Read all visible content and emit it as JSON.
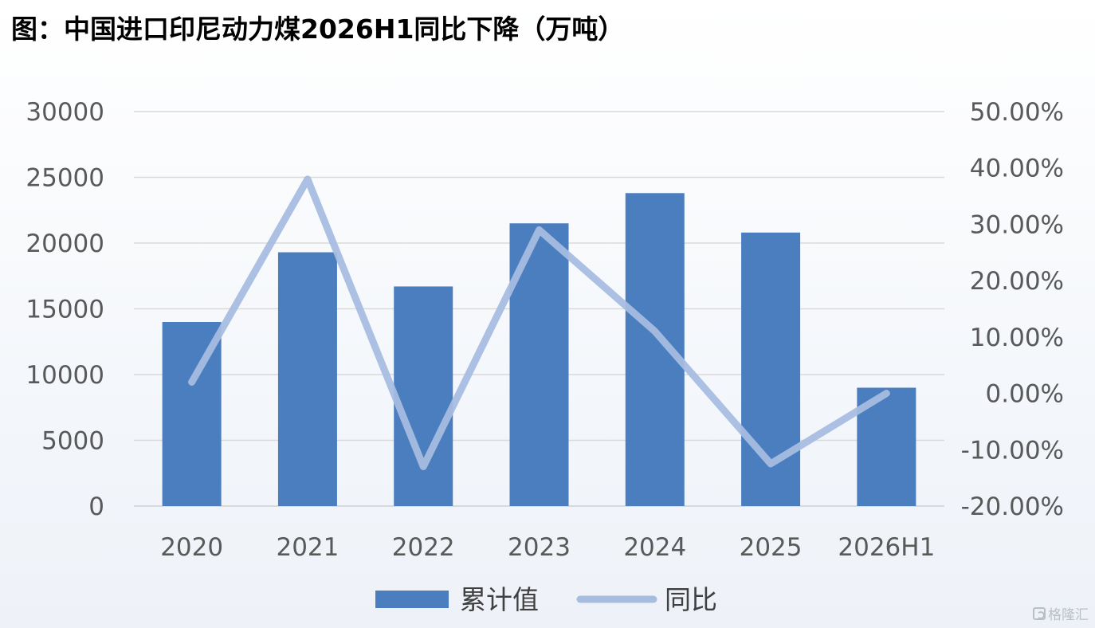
{
  "title": "图：中国进口印尼动力煤2026H1同比下降（万吨）",
  "colors": {
    "bar": "#4a7ebf",
    "line": "#a7bde0",
    "grid": "#d9d9d9",
    "axis_text": "#595959"
  },
  "chart_data": {
    "type": "bar",
    "title": "图：中国进口印尼动力煤2026H1同比下降（万吨）",
    "categories": [
      "2020",
      "2021",
      "2022",
      "2023",
      "2024",
      "2025",
      "2026H1"
    ],
    "series": [
      {
        "name": "累计值",
        "type": "bar",
        "axis": "left",
        "values": [
          14000,
          19300,
          16700,
          21500,
          23800,
          20800,
          9000
        ]
      },
      {
        "name": "同比",
        "type": "line",
        "axis": "right",
        "values": [
          0.02,
          0.38,
          -0.13,
          0.29,
          0.11,
          -0.125,
          0.0
        ]
      }
    ],
    "y_left": {
      "ylim": [
        0,
        30000
      ],
      "ticks": [
        0,
        5000,
        10000,
        15000,
        20000,
        25000,
        30000
      ],
      "tick_labels": [
        "0",
        "5000",
        "10000",
        "15000",
        "20000",
        "25000",
        "30000"
      ]
    },
    "y_right": {
      "ylim": [
        -0.2,
        0.5
      ],
      "ticks": [
        -0.2,
        -0.1,
        0.0,
        0.1,
        0.2,
        0.3,
        0.4,
        0.5
      ],
      "tick_labels": [
        "-20.00%",
        "-10.00%",
        "0.00%",
        "10.00%",
        "20.00%",
        "30.00%",
        "40.00%",
        "50.00%"
      ]
    },
    "grid": true,
    "legend": "bottom"
  },
  "watermark": "格隆汇"
}
